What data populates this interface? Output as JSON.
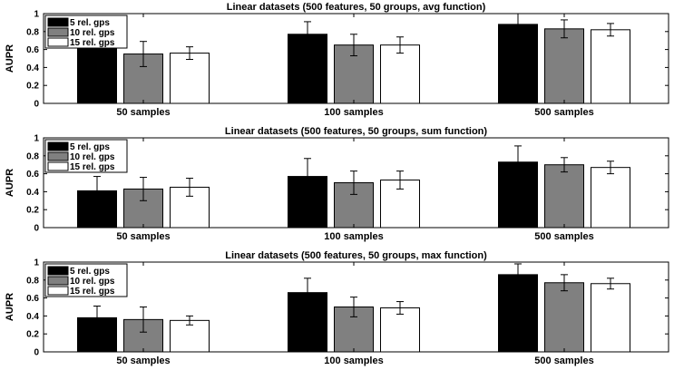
{
  "chart_data": [
    {
      "type": "bar",
      "title": "Linear datasets (500 features, 50 groups, avg function)",
      "ylabel": "AUPR",
      "ylim": [
        0,
        1
      ],
      "yticks": [
        "0",
        "0.2",
        "0.4",
        "0.6",
        "0.8",
        "1"
      ],
      "categories": [
        "50 samples",
        "100 samples",
        "500 samples"
      ],
      "legend_position": "top-left",
      "series": [
        {
          "name": "5 rel. gps",
          "color": "#000000",
          "values": [
            0.66,
            0.77,
            0.88
          ],
          "errors": [
            0.1,
            0.14,
            0.12
          ]
        },
        {
          "name": "10 rel. gps",
          "color": "#808080",
          "values": [
            0.55,
            0.65,
            0.83
          ],
          "errors": [
            0.14,
            0.12,
            0.1
          ]
        },
        {
          "name": "15 rel. gps",
          "color": "#ffffff",
          "values": [
            0.56,
            0.65,
            0.82
          ],
          "errors": [
            0.07,
            0.09,
            0.07
          ]
        }
      ]
    },
    {
      "type": "bar",
      "title": "Linear datasets (500 features, 50 groups, sum function)",
      "ylabel": "AUPR",
      "ylim": [
        0,
        1
      ],
      "yticks": [
        "0",
        "0.2",
        "0.4",
        "0.6",
        "0.8",
        "1"
      ],
      "categories": [
        "50 samples",
        "100 samples",
        "500 samples"
      ],
      "legend_position": "top-left",
      "series": [
        {
          "name": "5 rel. gps",
          "color": "#000000",
          "values": [
            0.41,
            0.57,
            0.73
          ],
          "errors": [
            0.16,
            0.2,
            0.18
          ]
        },
        {
          "name": "10 rel. gps",
          "color": "#808080",
          "values": [
            0.43,
            0.5,
            0.7
          ],
          "errors": [
            0.13,
            0.13,
            0.08
          ]
        },
        {
          "name": "15 rel. gps",
          "color": "#ffffff",
          "values": [
            0.45,
            0.53,
            0.67
          ],
          "errors": [
            0.1,
            0.1,
            0.07
          ]
        }
      ]
    },
    {
      "type": "bar",
      "title": "Linear datasets (500 features, 50 groups, max function)",
      "ylabel": "AUPR",
      "ylim": [
        0,
        1
      ],
      "yticks": [
        "0",
        "0.2",
        "0.4",
        "0.6",
        "0.8",
        "1"
      ],
      "categories": [
        "50 samples",
        "100 samples",
        "500 samples"
      ],
      "legend_position": "top-left",
      "series": [
        {
          "name": "5 rel. gps",
          "color": "#000000",
          "values": [
            0.38,
            0.66,
            0.86
          ],
          "errors": [
            0.13,
            0.16,
            0.12
          ]
        },
        {
          "name": "10 rel. gps",
          "color": "#808080",
          "values": [
            0.36,
            0.5,
            0.77
          ],
          "errors": [
            0.14,
            0.11,
            0.09
          ]
        },
        {
          "name": "15 rel. gps",
          "color": "#ffffff",
          "values": [
            0.35,
            0.49,
            0.76
          ],
          "errors": [
            0.05,
            0.07,
            0.06
          ]
        }
      ]
    }
  ]
}
